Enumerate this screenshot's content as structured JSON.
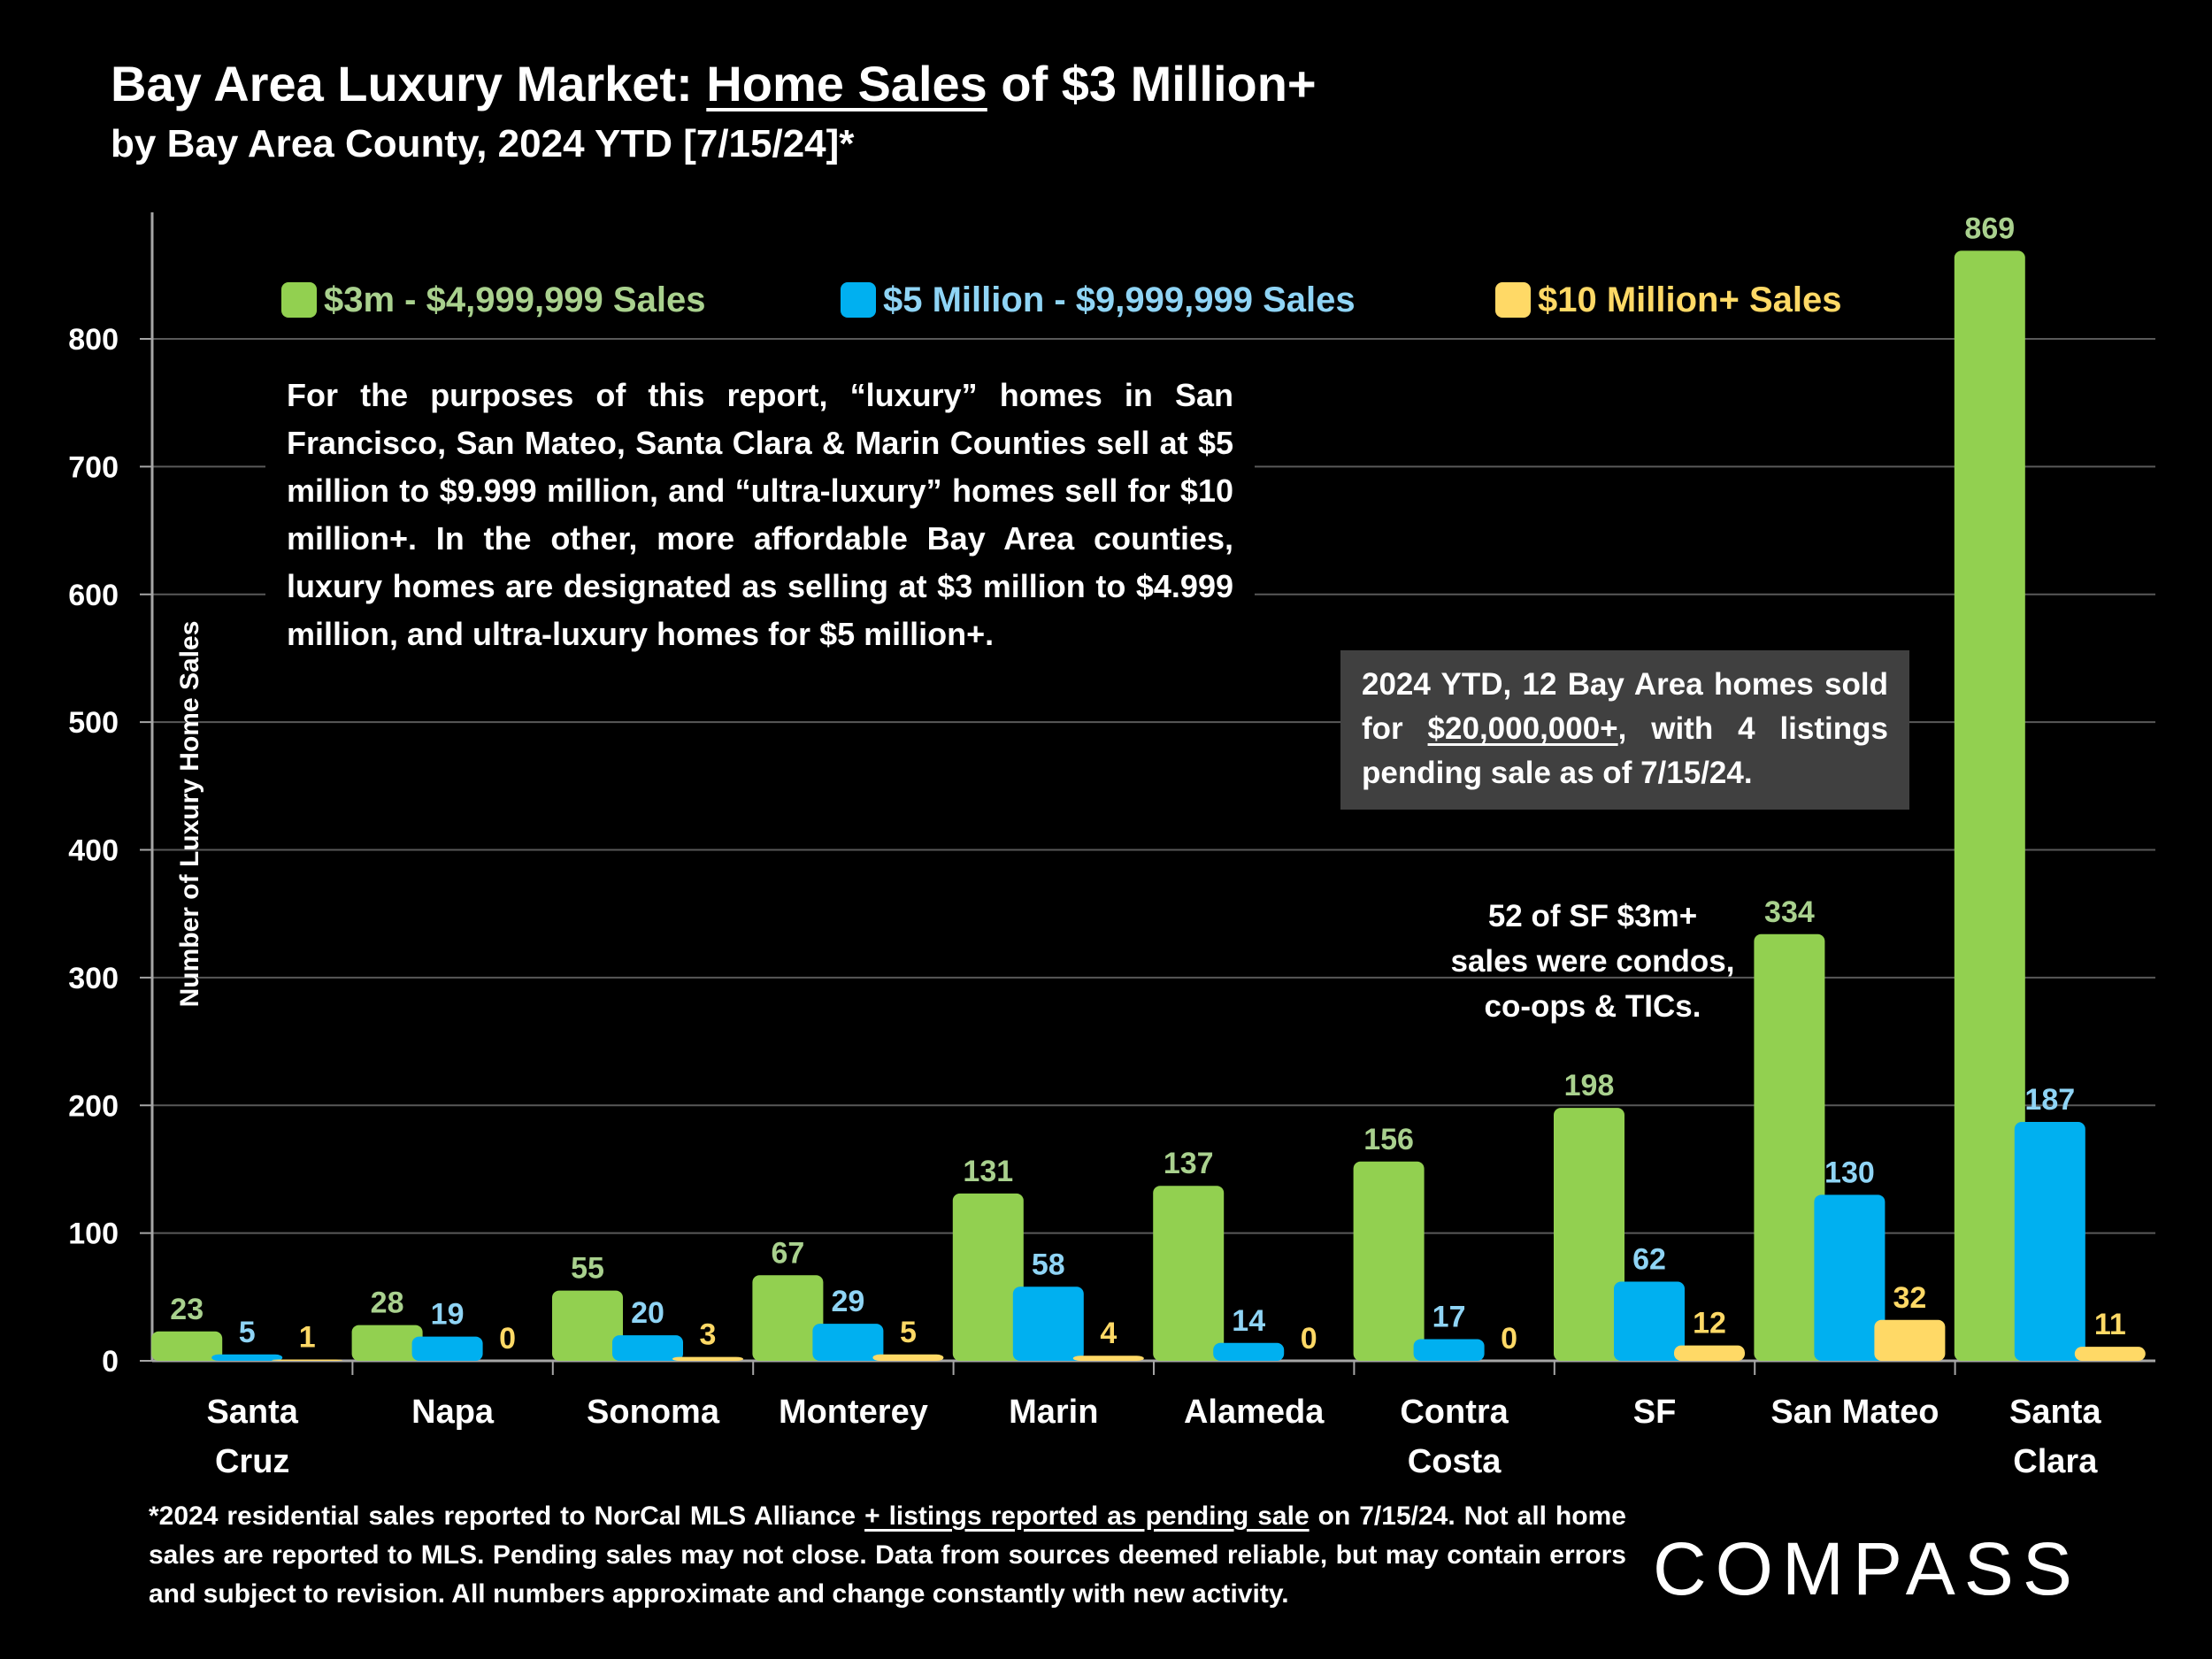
{
  "header": {
    "title_pre": "Bay Area Luxury Market: ",
    "title_underlined": "Home Sales",
    "title_post": " of $3 Million+",
    "subtitle": "by Bay Area County, 2024 YTD [7/15/24]*"
  },
  "legend": {
    "items": [
      {
        "label": "$3m - $4,999,999 Sales",
        "color": "#92d050"
      },
      {
        "label": "$5 Million - $9,999,999 Sales",
        "color": "#00b0f0"
      },
      {
        "label": "$10 Million+ Sales",
        "color": "#ffd966"
      }
    ]
  },
  "annotations": {
    "luxury_note": "For the purposes of this report, “luxury” homes in San Francisco, San Mateo, Santa Clara & Marin Counties sell at $5 million to $9.999 million, and “ultra-luxury” homes sell for $10 million+. In the other, more affordable Bay Area counties, luxury homes are designated as selling at $3 million to $4.999 million, and ultra-luxury homes for $5 million+.",
    "box_pre": "2024 YTD, 12 Bay Area homes sold for ",
    "box_underlined": "$20,000,000+",
    "box_post": ", with 4 listings pending sale as of 7/15/24.",
    "condo_line1": "52 of SF $3m+",
    "condo_line2": "sales were condos,",
    "condo_line3": "co-ops & TICs."
  },
  "footnote": {
    "pre": "*2024 residential sales reported to NorCal MLS Alliance ",
    "underlined": "+ listings reported as pending sale",
    "post": " on 7/15/24. Not all home sales are reported to MLS. Pending sales may not close. Data from sources deemed reliable, but may contain errors and subject to revision. All numbers approximate and change constantly with new activity."
  },
  "brand": {
    "logo_text": "COMPASS"
  },
  "chart_data": {
    "type": "bar",
    "title": "Bay Area Luxury Market: Home Sales of $3 Million+",
    "subtitle": "by Bay Area County, 2024 YTD [7/15/24]*",
    "ylabel": "Number of Luxury Home Sales",
    "xlabel": "",
    "ylim": [
      0,
      900
    ],
    "yticks": [
      0,
      100,
      200,
      300,
      400,
      500,
      600,
      700,
      800
    ],
    "grid": true,
    "legend_position": "top",
    "categories": [
      [
        "Santa",
        "Cruz"
      ],
      [
        "Napa"
      ],
      [
        "Sonoma"
      ],
      [
        "Monterey"
      ],
      [
        "Marin"
      ],
      [
        "Alameda"
      ],
      [
        "Contra",
        "Costa"
      ],
      [
        "SF"
      ],
      [
        "San Mateo"
      ],
      [
        "Santa",
        "Clara"
      ]
    ],
    "series": [
      {
        "name": "$3m - $4,999,999 Sales",
        "color": "#92d050",
        "label_color": "#a9d18e",
        "values": [
          23,
          28,
          55,
          67,
          131,
          137,
          156,
          198,
          334,
          869
        ]
      },
      {
        "name": "$5 Million - $9,999,999 Sales",
        "color": "#00b0f0",
        "label_color": "#8fd4f5",
        "values": [
          5,
          19,
          20,
          29,
          58,
          14,
          17,
          62,
          130,
          187
        ]
      },
      {
        "name": "$10 Million+ Sales",
        "color": "#ffd966",
        "label_color": "#ffd966",
        "values": [
          1,
          0,
          3,
          5,
          4,
          0,
          0,
          12,
          32,
          11
        ]
      }
    ]
  }
}
